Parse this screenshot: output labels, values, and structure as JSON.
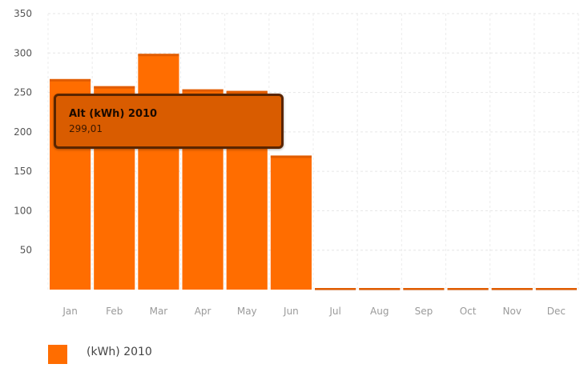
{
  "chart_data": {
    "type": "bar",
    "categories": [
      "Jan",
      "Feb",
      "Mar",
      "Apr",
      "May",
      "Jun",
      "Jul",
      "Aug",
      "Sep",
      "Oct",
      "Nov",
      "Dec"
    ],
    "series": [
      {
        "name": "(kWh) 2010",
        "values": [
          267,
          258,
          299.01,
          254,
          252,
          170,
          2,
          2,
          2,
          2,
          2,
          2
        ]
      }
    ],
    "ylim": [
      0,
      350
    ],
    "yticks": [
      50,
      100,
      150,
      200,
      250,
      300,
      350
    ],
    "grid": true,
    "legend_position": "bottom-left",
    "bar_color": "#ff6d00",
    "tooltip": {
      "title": "Alt (kWh) 2010",
      "value": "299,01"
    }
  }
}
